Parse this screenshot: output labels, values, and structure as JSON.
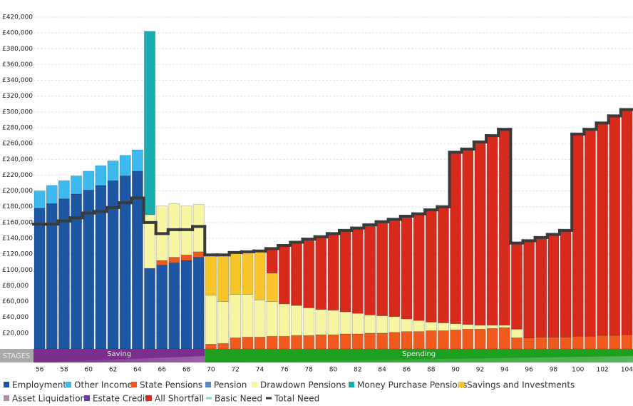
{
  "chart_data": {
    "type": "bar",
    "stacked": true,
    "categories": [
      56,
      null,
      58,
      null,
      60,
      null,
      62,
      null,
      64,
      null,
      66,
      null,
      68,
      null,
      70,
      null,
      72,
      null,
      74,
      null,
      76,
      null,
      78,
      null,
      80,
      null,
      82,
      null,
      84,
      null,
      86,
      null,
      88,
      null,
      90,
      null,
      92,
      null,
      94,
      null,
      96,
      null,
      98,
      null,
      100,
      null,
      102,
      null,
      104
    ],
    "ylim": [
      0,
      420000
    ],
    "yticks": [
      {
        "value": 20000,
        "label": "£20,000"
      },
      {
        "value": 40000,
        "label": "£40,000"
      },
      {
        "value": 60000,
        "label": "£60,000"
      },
      {
        "value": 80000,
        "label": "£80,000"
      },
      {
        "value": 100000,
        "label": "£100,000"
      },
      {
        "value": 120000,
        "label": "£120,000"
      },
      {
        "value": 140000,
        "label": "£140,000"
      },
      {
        "value": 160000,
        "label": "£160,000"
      },
      {
        "value": 180000,
        "label": "£180,000"
      },
      {
        "value": 200000,
        "label": "£200,000"
      },
      {
        "value": 220000,
        "label": "£220,000"
      },
      {
        "value": 240000,
        "label": "£240,000"
      },
      {
        "value": 260000,
        "label": "£260,000"
      },
      {
        "value": 280000,
        "label": "£280,000"
      },
      {
        "value": 300000,
        "label": "£300,000"
      },
      {
        "value": 320000,
        "label": "£320,000"
      },
      {
        "value": 340000,
        "label": "£340,000"
      },
      {
        "value": 360000,
        "label": "£360,000"
      },
      {
        "value": 380000,
        "label": "£380,000"
      },
      {
        "value": 400000,
        "label": "£400,000"
      },
      {
        "value": 420000,
        "label": "£420,000"
      }
    ],
    "grid": true,
    "series": [
      {
        "name": "Employment",
        "color": "#1d56a3",
        "values": [
          178000,
          184000,
          190000,
          196000,
          201000,
          207000,
          213000,
          219000,
          225000,
          102000,
          106000,
          109000,
          112000,
          116000,
          0,
          0,
          0,
          0,
          0,
          0,
          0,
          0,
          0,
          0,
          0,
          0,
          0,
          0,
          0,
          0,
          0,
          0,
          0,
          0,
          0,
          0,
          0,
          0,
          0,
          0,
          0,
          0,
          0,
          0,
          0,
          0,
          0,
          0,
          0
        ]
      },
      {
        "name": "Other Income",
        "color": "#3cb9ee",
        "values": [
          22000,
          23000,
          23000,
          23000,
          24000,
          25000,
          25000,
          26000,
          27000,
          0,
          0,
          0,
          0,
          0,
          0,
          0,
          0,
          0,
          0,
          0,
          0,
          0,
          0,
          0,
          0,
          0,
          0,
          0,
          0,
          0,
          0,
          0,
          0,
          0,
          0,
          0,
          0,
          0,
          0,
          0,
          0,
          0,
          0,
          0,
          0,
          0,
          0,
          0,
          0
        ]
      },
      {
        "name": "State Pensions",
        "color": "#f05a1c",
        "values": [
          0,
          0,
          0,
          0,
          0,
          0,
          0,
          0,
          0,
          0,
          6000,
          7000,
          7000,
          7000,
          6000,
          7000,
          14000,
          15000,
          15000,
          16000,
          16000,
          17000,
          17000,
          18000,
          18000,
          19000,
          19000,
          20000,
          20000,
          21000,
          22000,
          22000,
          23000,
          23000,
          24000,
          25000,
          25000,
          26000,
          27000,
          14000,
          14000,
          15000,
          15000,
          15000,
          16000,
          16000,
          17000,
          17000,
          18000
        ]
      },
      {
        "name": "Pension",
        "color": "#5b88c6",
        "values": [
          null,
          null,
          null,
          null,
          null,
          null,
          null,
          null,
          null,
          null,
          null,
          null,
          null,
          null,
          null,
          null,
          null,
          null,
          null,
          null,
          null,
          null,
          null,
          null,
          null,
          null,
          null,
          null,
          null,
          null,
          null,
          null,
          null,
          null,
          null,
          null,
          null,
          null,
          null,
          null,
          null,
          null,
          null,
          null,
          null,
          null,
          null,
          null,
          null
        ]
      },
      {
        "name": "Drawdown Pensions",
        "color": "#f8f6a3",
        "values": [
          0,
          0,
          0,
          0,
          0,
          0,
          0,
          0,
          0,
          68000,
          69000,
          68000,
          62000,
          60000,
          62000,
          53000,
          55000,
          54000,
          47000,
          44000,
          41000,
          38000,
          35000,
          32000,
          31000,
          28000,
          26000,
          23000,
          22000,
          20000,
          16000,
          14000,
          11000,
          10000,
          8000,
          6000,
          5000,
          4000,
          3000,
          11000,
          0,
          0,
          0,
          0,
          0,
          0,
          0,
          0,
          0
        ]
      },
      {
        "name": "Money Purchase Pensions",
        "color": "#19adb0",
        "values": [
          0,
          0,
          0,
          0,
          0,
          0,
          0,
          0,
          0,
          232000,
          0,
          0,
          0,
          0,
          0,
          0,
          0,
          0,
          0,
          0,
          0,
          0,
          0,
          0,
          0,
          0,
          0,
          0,
          0,
          0,
          0,
          0,
          0,
          0,
          0,
          0,
          0,
          0,
          0,
          0,
          0,
          0,
          0,
          0,
          0,
          0,
          0,
          0,
          0
        ]
      },
      {
        "name": "Savings and Investments",
        "color": "#f7c52a",
        "values": [
          0,
          0,
          0,
          0,
          0,
          0,
          0,
          0,
          0,
          0,
          0,
          0,
          0,
          0,
          51000,
          59000,
          53000,
          54000,
          62000,
          36000,
          0,
          0,
          0,
          0,
          0,
          0,
          0,
          0,
          0,
          0,
          0,
          0,
          0,
          0,
          0,
          0,
          0,
          0,
          0,
          0,
          0,
          0,
          0,
          0,
          0,
          0,
          0,
          0,
          0
        ]
      },
      {
        "name": "Asset Liquidation",
        "color": "#b08cb0",
        "values": [
          null,
          null,
          null,
          null,
          null,
          null,
          null,
          null,
          null,
          null,
          null,
          null,
          null,
          null,
          null,
          null,
          null,
          null,
          null,
          null,
          null,
          null,
          null,
          null,
          null,
          null,
          null,
          null,
          null,
          null,
          null,
          null,
          null,
          null,
          null,
          null,
          null,
          null,
          null,
          null,
          null,
          null,
          null,
          null,
          null,
          null,
          null,
          null,
          null
        ]
      },
      {
        "name": "Estate Credit",
        "color": "#6a3ea3",
        "values": [
          null,
          null,
          null,
          null,
          null,
          null,
          null,
          null,
          null,
          null,
          null,
          null,
          null,
          null,
          null,
          null,
          null,
          null,
          null,
          null,
          null,
          null,
          null,
          null,
          null,
          null,
          null,
          null,
          null,
          null,
          null,
          null,
          null,
          null,
          null,
          null,
          null,
          null,
          null,
          null,
          null,
          null,
          null,
          null,
          null,
          null,
          null,
          null,
          null
        ]
      },
      {
        "name": "All Shortfall",
        "color": "#d8291d",
        "values": [
          0,
          0,
          0,
          0,
          0,
          0,
          0,
          0,
          0,
          0,
          0,
          0,
          0,
          0,
          0,
          0,
          0,
          0,
          0,
          31000,
          74000,
          80000,
          87000,
          92000,
          97000,
          103000,
          108000,
          114000,
          119000,
          123000,
          130000,
          135000,
          142000,
          147000,
          217000,
          222000,
          232000,
          240000,
          248000,
          109000,
          123000,
          126000,
          130000,
          135000,
          256000,
          262000,
          269000,
          278000,
          285000
        ]
      },
      {
        "name": "Basic Need",
        "type": "line",
        "color": "#7fd6c8",
        "values": [
          null,
          null,
          null,
          null,
          null,
          null,
          null,
          null,
          null,
          null,
          null,
          null,
          null,
          null,
          null,
          null,
          null,
          null,
          null,
          null,
          null,
          null,
          null,
          null,
          null,
          null,
          null,
          null,
          null,
          null,
          null,
          null,
          null,
          null,
          null,
          null,
          null,
          null,
          null,
          null,
          null,
          null,
          null,
          null,
          null,
          null,
          null,
          null,
          null
        ]
      },
      {
        "name": "Total Need",
        "type": "line",
        "color": "#3a3a3a",
        "values": [
          158000,
          158000,
          162000,
          166000,
          172000,
          174000,
          179000,
          185000,
          191000,
          160000,
          146000,
          151000,
          151000,
          155000,
          119000,
          119000,
          122000,
          123000,
          124000,
          127000,
          131000,
          135000,
          139000,
          142000,
          146000,
          150000,
          153000,
          157000,
          161000,
          164000,
          168000,
          171000,
          176000,
          180000,
          249000,
          253000,
          262000,
          270000,
          278000,
          134000,
          137000,
          141000,
          145000,
          150000,
          272000,
          278000,
          286000,
          295000,
          303000
        ]
      }
    ],
    "stages": {
      "label": "STAGES",
      "items": [
        "Saving",
        "Spending"
      ]
    }
  }
}
